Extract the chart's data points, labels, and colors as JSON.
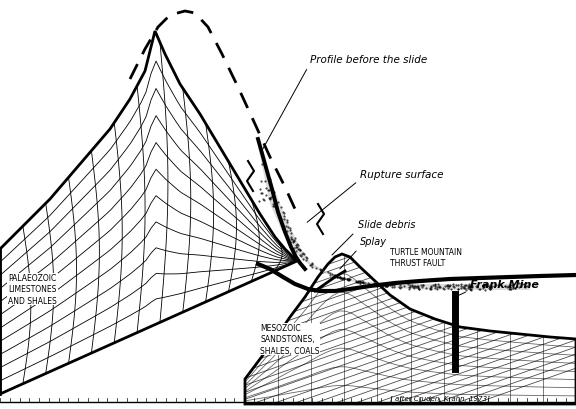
{
  "background_color": "#ffffff",
  "line_color": "#000000",
  "labels": {
    "palaeozoic": "PALAEOZOIC\nLIMESTONES\nAND SHALES",
    "mesozoic": "MESOZOIC\nSANDSTONES,\nSHALES, COALS",
    "profile": "Profile before the slide",
    "rupture": "Rupture surface",
    "slide_debris": "Slide debris",
    "splay": "Splay",
    "thrust": "TURTLE MOUNTAIN\nTHRUST FAULT",
    "frank_mine": "Frank Mine",
    "citation": "[ after Cruden, Krahn, 1973]"
  }
}
